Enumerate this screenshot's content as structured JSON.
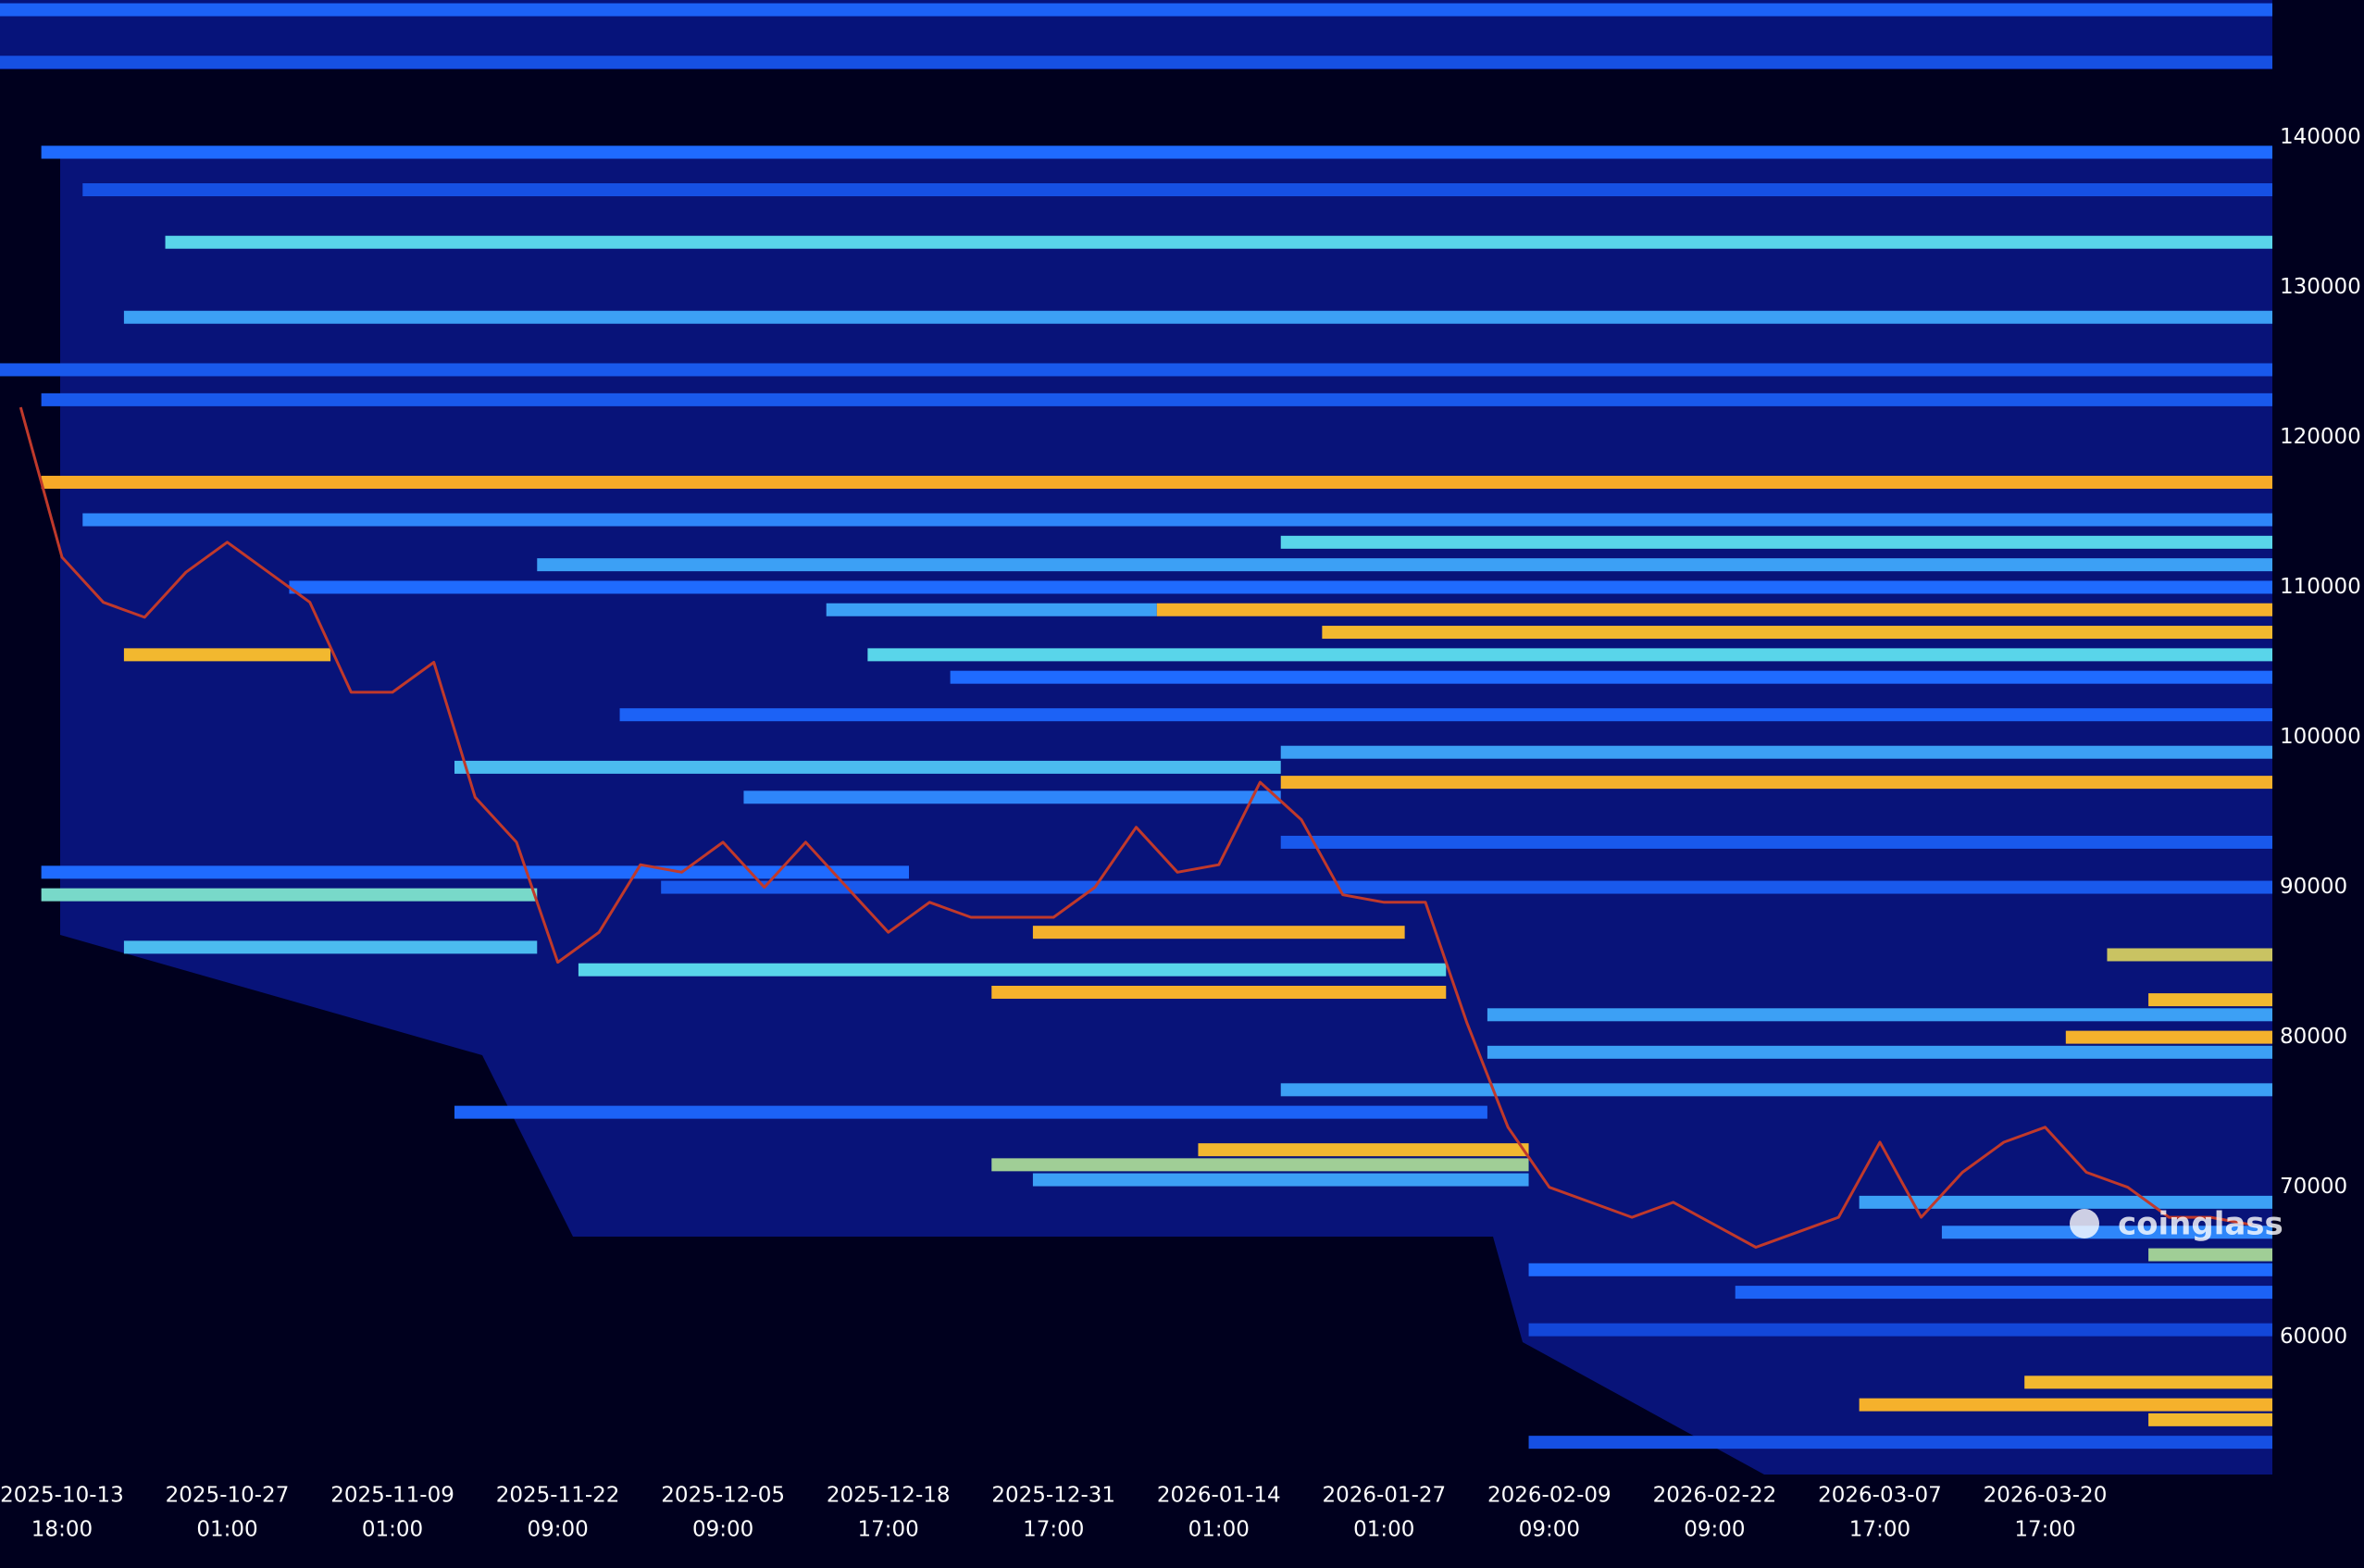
{
  "chart_data": {
    "type": "heatmap",
    "categories": [
      null,
      "2025-10-13",
      null,
      null,
      null,
      "2025-10-27",
      null,
      null,
      null,
      "2025-11-09",
      null,
      null,
      null,
      "2025-11-22",
      null,
      null,
      null,
      "2025-12-05",
      null,
      null,
      null,
      "2025-12-18",
      null,
      null,
      null,
      "2025-12-31",
      null,
      null,
      null,
      "2026-01-14",
      null,
      null,
      null,
      "2026-01-27",
      null,
      null,
      null,
      "2026-02-09",
      null,
      null,
      null,
      "2026-02-22",
      null,
      null,
      null,
      "2026-03-07",
      null,
      null,
      null,
      "2026-03-20",
      null,
      null,
      null,
      null,
      null
    ],
    "category_times": [
      null,
      "18:00",
      null,
      null,
      null,
      "01:00",
      null,
      null,
      null,
      "01:00",
      null,
      null,
      null,
      "09:00",
      null,
      null,
      null,
      "09:00",
      null,
      null,
      null,
      "17:00",
      null,
      null,
      null,
      "17:00",
      null,
      null,
      null,
      "01:00",
      null,
      null,
      null,
      "01:00",
      null,
      null,
      null,
      "09:00",
      null,
      null,
      null,
      "09:00",
      null,
      null,
      null,
      "17:00",
      null,
      null,
      null,
      "17:00",
      null,
      null,
      null,
      null,
      null
    ],
    "price": {
      "color": "#c0392b",
      "values": [
        122000,
        112000,
        109000,
        108000,
        111000,
        113000,
        111000,
        109000,
        103000,
        103000,
        105000,
        96000,
        93000,
        85000,
        87000,
        91500,
        91000,
        93000,
        90000,
        93000,
        90000,
        87000,
        89000,
        88000,
        88000,
        88000,
        90000,
        94000,
        91000,
        91500,
        97000,
        94500,
        89500,
        89000,
        89000,
        81000,
        74000,
        70000,
        69000,
        68000,
        69000,
        67500,
        66000,
        67000,
        68000,
        73000,
        68000,
        71000,
        73000,
        74000,
        71000,
        70000,
        68000,
        68000,
        67500
      ]
    },
    "heat": [
      {
        "y": 148500,
        "start": 0,
        "end": 54,
        "value": 0.45
      },
      {
        "y": 145000,
        "start": 0,
        "end": 54,
        "value": 0.35
      },
      {
        "y": 139000,
        "start": 1,
        "end": 54,
        "value": 0.5
      },
      {
        "y": 136500,
        "start": 2,
        "end": 54,
        "value": 0.35
      },
      {
        "y": 133000,
        "start": 4,
        "end": 54,
        "value": 0.7
      },
      {
        "y": 128000,
        "start": 3,
        "end": 54,
        "value": 0.6
      },
      {
        "y": 124500,
        "start": 0,
        "end": 54,
        "value": 0.4
      },
      {
        "y": 122500,
        "start": 1,
        "end": 54,
        "value": 0.4
      },
      {
        "y": 117000,
        "start": 1,
        "end": 54,
        "value": 1.0
      },
      {
        "y": 114500,
        "start": 2,
        "end": 54,
        "value": 0.55
      },
      {
        "y": 113000,
        "start": 31,
        "end": 54,
        "value": 0.7
      },
      {
        "y": 111500,
        "start": 13,
        "end": 54,
        "value": 0.6
      },
      {
        "y": 110000,
        "start": 7,
        "end": 54,
        "value": 0.5
      },
      {
        "y": 108500,
        "start": 20,
        "end": 27,
        "value": 0.6
      },
      {
        "y": 108500,
        "start": 28,
        "end": 54,
        "value": 0.95
      },
      {
        "y": 107000,
        "start": 32,
        "end": 54,
        "value": 0.9
      },
      {
        "y": 105500,
        "start": 3,
        "end": 7,
        "value": 0.9
      },
      {
        "y": 105500,
        "start": 21,
        "end": 54,
        "value": 0.7
      },
      {
        "y": 104000,
        "start": 23,
        "end": 54,
        "value": 0.5
      },
      {
        "y": 101500,
        "start": 15,
        "end": 54,
        "value": 0.45
      },
      {
        "y": 99000,
        "start": 31,
        "end": 54,
        "value": 0.6
      },
      {
        "y": 98000,
        "start": 11,
        "end": 30,
        "value": 0.65
      },
      {
        "y": 97000,
        "start": 31,
        "end": 54,
        "value": 0.95
      },
      {
        "y": 96000,
        "start": 18,
        "end": 30,
        "value": 0.55
      },
      {
        "y": 93000,
        "start": 31,
        "end": 54,
        "value": 0.4
      },
      {
        "y": 91000,
        "start": 1,
        "end": 21,
        "value": 0.5
      },
      {
        "y": 90000,
        "start": 16,
        "end": 54,
        "value": 0.4
      },
      {
        "y": 89500,
        "start": 1,
        "end": 12,
        "value": 0.75
      },
      {
        "y": 87000,
        "start": 25,
        "end": 33,
        "value": 0.95
      },
      {
        "y": 86000,
        "start": 3,
        "end": 12,
        "value": 0.65
      },
      {
        "y": 85500,
        "start": 51,
        "end": 54,
        "value": 0.85
      },
      {
        "y": 84500,
        "start": 14,
        "end": 34,
        "value": 0.7
      },
      {
        "y": 83000,
        "start": 24,
        "end": 34,
        "value": 0.95
      },
      {
        "y": 82500,
        "start": 52,
        "end": 54,
        "value": 0.9
      },
      {
        "y": 81500,
        "start": 36,
        "end": 54,
        "value": 0.6
      },
      {
        "y": 80000,
        "start": 50,
        "end": 54,
        "value": 0.95
      },
      {
        "y": 79000,
        "start": 36,
        "end": 54,
        "value": 0.6
      },
      {
        "y": 76500,
        "start": 31,
        "end": 54,
        "value": 0.6
      },
      {
        "y": 75000,
        "start": 11,
        "end": 35,
        "value": 0.45
      },
      {
        "y": 72500,
        "start": 29,
        "end": 36,
        "value": 0.9
      },
      {
        "y": 71500,
        "start": 24,
        "end": 36,
        "value": 0.8
      },
      {
        "y": 70500,
        "start": 25,
        "end": 36,
        "value": 0.6
      },
      {
        "y": 69000,
        "start": 45,
        "end": 54,
        "value": 0.6
      },
      {
        "y": 67000,
        "start": 47,
        "end": 54,
        "value": 0.55
      },
      {
        "y": 65500,
        "start": 52,
        "end": 54,
        "value": 0.8
      },
      {
        "y": 64500,
        "start": 37,
        "end": 54,
        "value": 0.5
      },
      {
        "y": 63000,
        "start": 42,
        "end": 54,
        "value": 0.45
      },
      {
        "y": 60500,
        "start": 37,
        "end": 54,
        "value": 0.3
      },
      {
        "y": 57000,
        "start": 49,
        "end": 54,
        "value": 0.9
      },
      {
        "y": 55500,
        "start": 45,
        "end": 54,
        "value": 0.95
      },
      {
        "y": 54500,
        "start": 52,
        "end": 54,
        "value": 0.9
      },
      {
        "y": 53000,
        "start": 37,
        "end": 54,
        "value": 0.35
      }
    ],
    "ylim": [
      50850,
      149150
    ],
    "yticks": [
      60000,
      70000,
      80000,
      90000,
      100000,
      110000,
      120000,
      130000,
      140000
    ],
    "watermark": "coinglass"
  }
}
